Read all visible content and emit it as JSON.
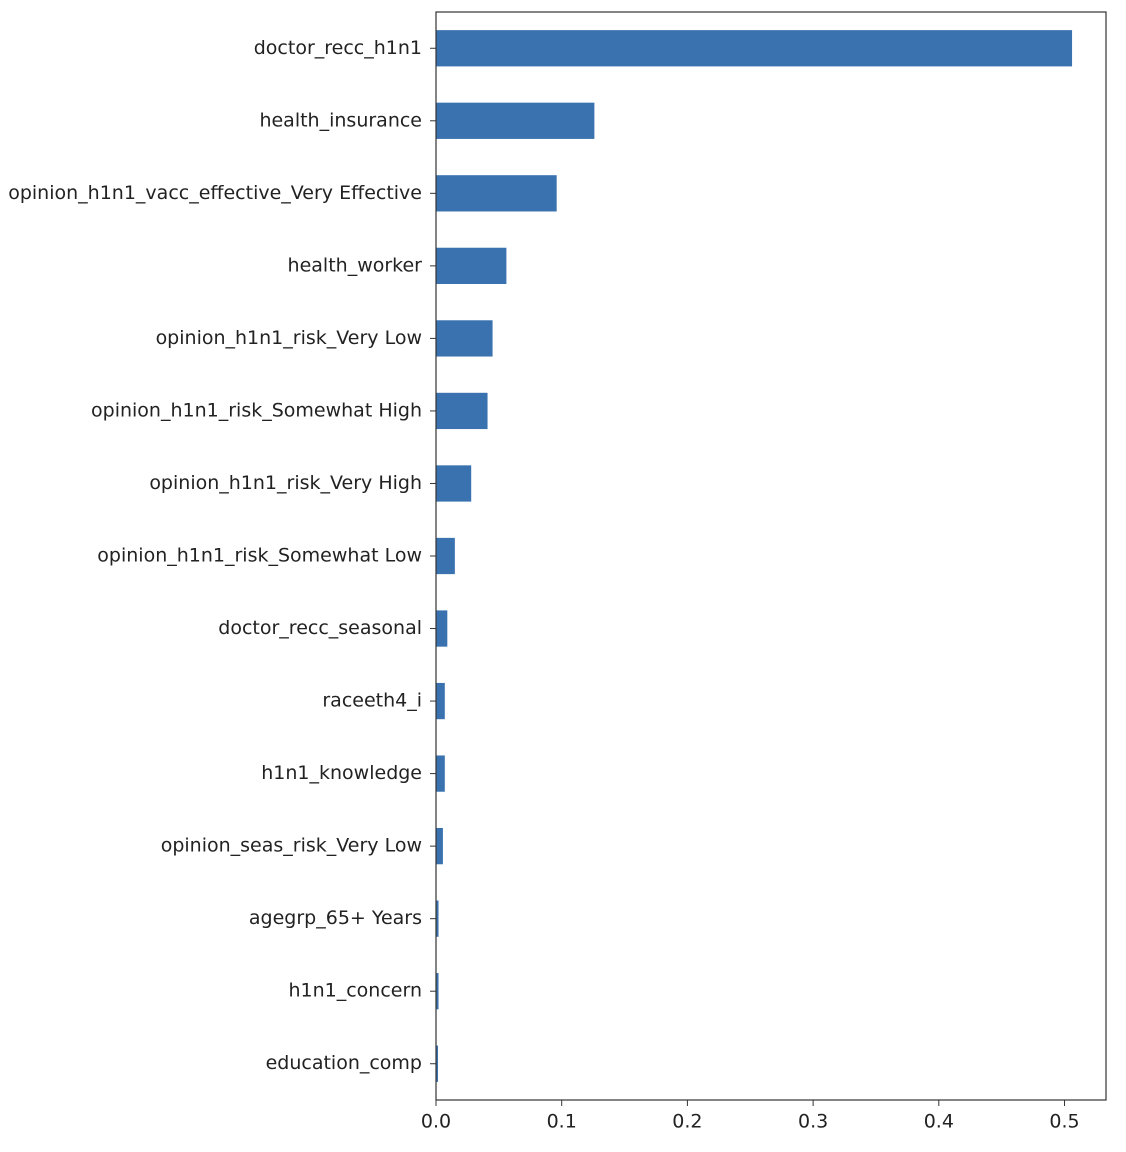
{
  "chart_data": {
    "type": "barh",
    "categories": [
      "doctor_recc_h1n1",
      "health_insurance",
      "opinion_h1n1_vacc_effective_Very Effective",
      "health_worker",
      "opinion_h1n1_risk_Very Low",
      "opinion_h1n1_risk_Somewhat High",
      "opinion_h1n1_risk_Very High",
      "opinion_h1n1_risk_Somewhat Low",
      "doctor_recc_seasonal",
      "raceeth4_i",
      "h1n1_knowledge",
      "opinion_seas_risk_Very Low",
      "agegrp_65+ Years",
      "h1n1_concern",
      "education_comp"
    ],
    "values": [
      0.506,
      0.126,
      0.096,
      0.056,
      0.045,
      0.041,
      0.028,
      0.015,
      0.009,
      0.007,
      0.007,
      0.0055,
      0.002,
      0.002,
      0.0016
    ],
    "color": "#3a72b0",
    "xlim": [
      0,
      0.533
    ],
    "xticks": [
      {
        "value": 0,
        "label": "0.0"
      },
      0.1,
      0.2,
      0.3,
      0.4,
      0.5
    ]
  }
}
